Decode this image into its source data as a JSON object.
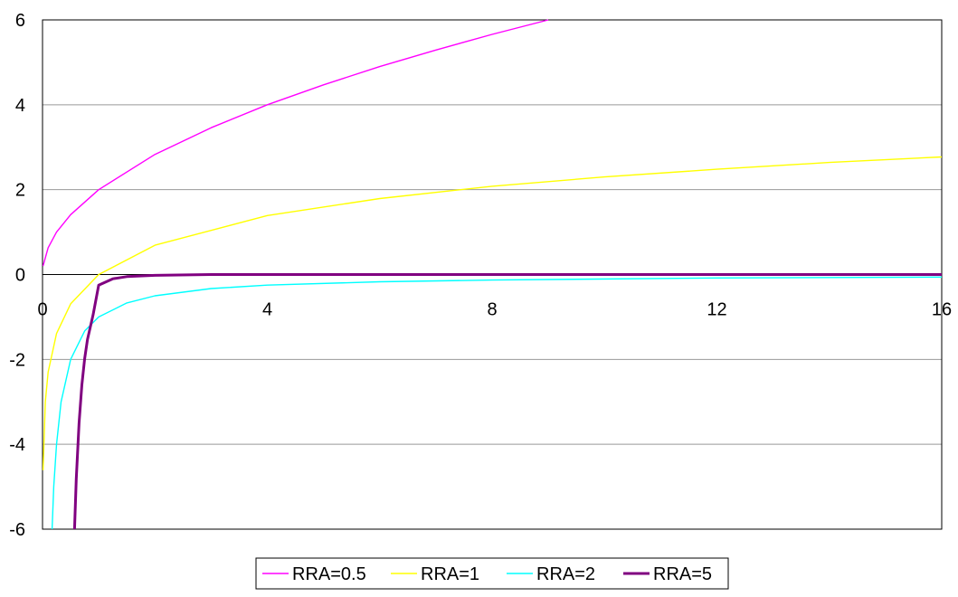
{
  "chart_data": {
    "type": "line",
    "x_domain": [
      0,
      16
    ],
    "ylim": [
      -6,
      6
    ],
    "x_ticks": [
      0,
      4,
      8,
      12,
      16
    ],
    "y_ticks": [
      6,
      4,
      2,
      0,
      -2,
      -4,
      -6
    ],
    "x_tick_labels": [
      "0",
      "4",
      "8",
      "12",
      "16"
    ],
    "y_tick_labels": [
      "6",
      "4",
      "2",
      "0",
      "-2",
      "-4",
      "-6"
    ],
    "grid": "horizontal",
    "legend_position": "bottom",
    "series": [
      {
        "name": "RRA=0.5",
        "color": "#ff00ff",
        "x": [
          0.01,
          0.1,
          0.25,
          0.5,
          1,
          2,
          3,
          4,
          5,
          6,
          7,
          8,
          9
        ],
        "y": [
          0.2,
          0.63,
          1.0,
          1.41,
          2.0,
          2.83,
          3.46,
          4.0,
          4.47,
          4.9,
          5.29,
          5.66,
          6.0
        ]
      },
      {
        "name": "RRA=1",
        "color": "#ffff00",
        "x": [
          0.01,
          0.05,
          0.1,
          0.25,
          0.5,
          1,
          2,
          4,
          6,
          8,
          10,
          12,
          14,
          16
        ],
        "y": [
          -4.61,
          -3.0,
          -2.3,
          -1.39,
          -0.69,
          0.0,
          0.69,
          1.39,
          1.79,
          2.08,
          2.3,
          2.48,
          2.64,
          2.77
        ]
      },
      {
        "name": "RRA=2",
        "color": "#00ffff",
        "x": [
          0.17,
          0.2,
          0.25,
          0.33,
          0.5,
          0.75,
          1,
          1.5,
          2,
          3,
          4,
          6,
          8,
          12,
          16
        ],
        "y": [
          -6.0,
          -5.0,
          -4.0,
          -3.0,
          -2.0,
          -1.33,
          -1.0,
          -0.67,
          -0.5,
          -0.33,
          -0.25,
          -0.17,
          -0.13,
          -0.08,
          -0.06
        ]
      },
      {
        "name": "RRA=5",
        "color": "#800080",
        "x": [
          0.57,
          0.6,
          0.65,
          0.7,
          0.75,
          0.8,
          0.9,
          1,
          1.25,
          1.5,
          2,
          3,
          4,
          8,
          16
        ],
        "y": [
          -6.0,
          -4.82,
          -3.5,
          -2.6,
          -1.98,
          -1.53,
          -0.95,
          -0.25,
          -0.1,
          -0.05,
          -0.02,
          0.0,
          0.0,
          0.0,
          0.0
        ]
      }
    ]
  }
}
